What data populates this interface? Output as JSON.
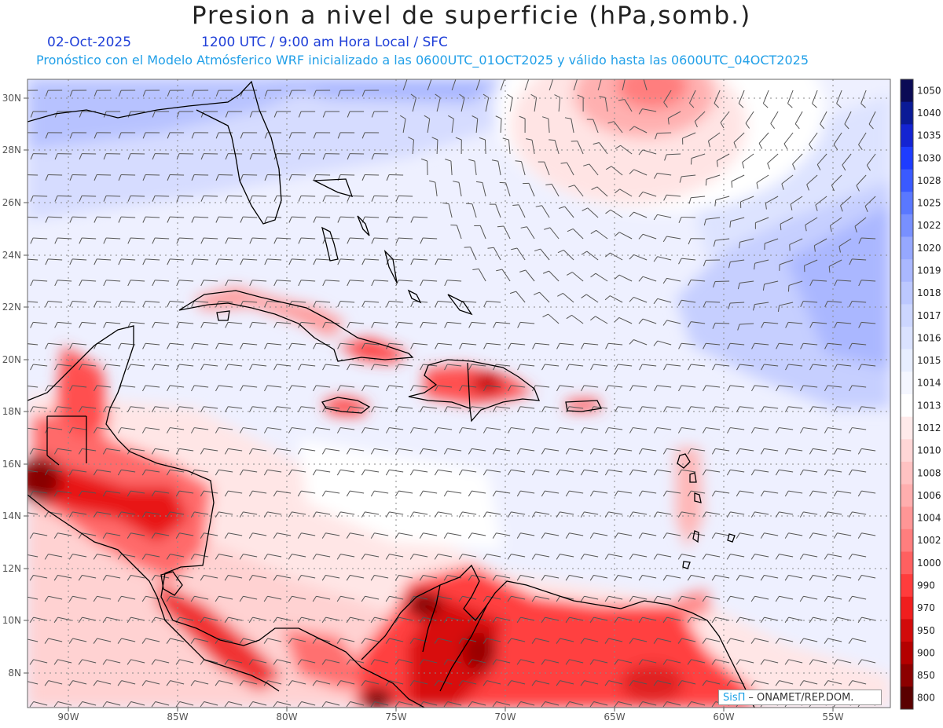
{
  "header": {
    "title": "Presion a nivel de superficie (hPa,somb.)",
    "date": "02-Oct-2025",
    "time_info": "1200 UTC / 9:00 am Hora Local / SFC",
    "model_info": "Pronóstico con el Modelo Atmósferico WRF inicializado a las 0600UTC_01OCT2025 y válido hasta las  0600UTC_04OCT2025"
  },
  "map": {
    "lat_labels": [
      "30N",
      "28N",
      "26N",
      "24N",
      "22N",
      "20N",
      "18N",
      "16N",
      "14N",
      "12N",
      "10N",
      "8N"
    ],
    "lon_labels": [
      "90W",
      "85W",
      "80W",
      "75W",
      "70W",
      "65W",
      "60W",
      "55W"
    ],
    "colorbar_labels": [
      "1050",
      "1040",
      "1035",
      "1030",
      "1028",
      "1025",
      "1022",
      "1020",
      "1019",
      "1018",
      "1017",
      "1016",
      "1015",
      "1014",
      "1013",
      "1012",
      "1010",
      "1008",
      "1006",
      "1004",
      "1002",
      "1000",
      "990",
      "970",
      "950",
      "900",
      "850",
      "800"
    ],
    "colorbar_colors": [
      "#0a0a55",
      "#0a1a96",
      "#1424d2",
      "#1e3cff",
      "#3a5aff",
      "#5a78ff",
      "#7890ff",
      "#96a8ff",
      "#aab8ff",
      "#bcc8ff",
      "#ccd6ff",
      "#dae2ff",
      "#e8eeff",
      "#f4f6ff",
      "#ffffff",
      "#ffeaea",
      "#ffd6d6",
      "#ffc2c2",
      "#ffaeae",
      "#ff9696",
      "#ff7e7e",
      "#ff6060",
      "#ff3c3c",
      "#f01e1e",
      "#d20a0a",
      "#b40000",
      "#8c0000",
      "#5a0000"
    ]
  },
  "credit": {
    "logo": "SisΠ",
    "text": "– ONAMET/REP.DOM."
  }
}
